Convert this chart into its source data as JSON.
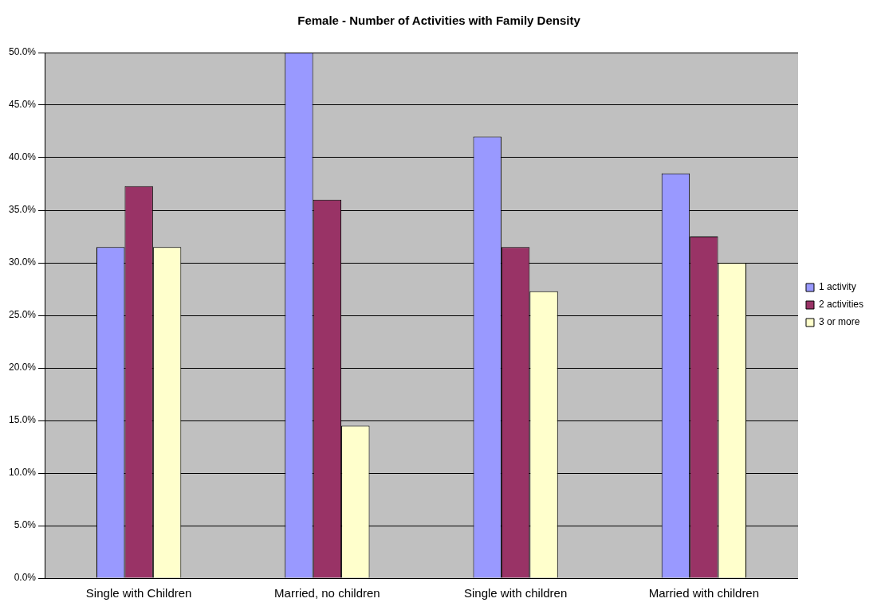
{
  "chart_data": {
    "type": "bar",
    "title": "Female - Number of Activities with Family Density",
    "categories": [
      "Single with Children",
      "Married, no children",
      "Single with children",
      "Married with children"
    ],
    "series": [
      {
        "name": "1 activity",
        "color": "#9999ff",
        "values": [
          31.5,
          50.0,
          42.0,
          38.5
        ]
      },
      {
        "name": "2 activities",
        "color": "#993366",
        "values": [
          37.3,
          36.0,
          31.5,
          32.5
        ]
      },
      {
        "name": "3 or more",
        "color": "#ffffcc",
        "values": [
          31.5,
          14.5,
          27.3,
          30.0
        ]
      }
    ],
    "ylim": [
      0,
      50
    ],
    "yticks": [
      {
        "value": 0,
        "label": "0.0%"
      },
      {
        "value": 5,
        "label": "5.0%"
      },
      {
        "value": 10,
        "label": "10.0%"
      },
      {
        "value": 15,
        "label": "15.0%"
      },
      {
        "value": 20,
        "label": "20.0%"
      },
      {
        "value": 25,
        "label": "25.0%"
      },
      {
        "value": 30,
        "label": "30.0%"
      },
      {
        "value": 35,
        "label": "35.0%"
      },
      {
        "value": 40,
        "label": "40.0%"
      },
      {
        "value": 45,
        "label": "45.0%"
      },
      {
        "value": 50,
        "label": "50.0%"
      }
    ],
    "grid": "y",
    "legend": "right"
  }
}
